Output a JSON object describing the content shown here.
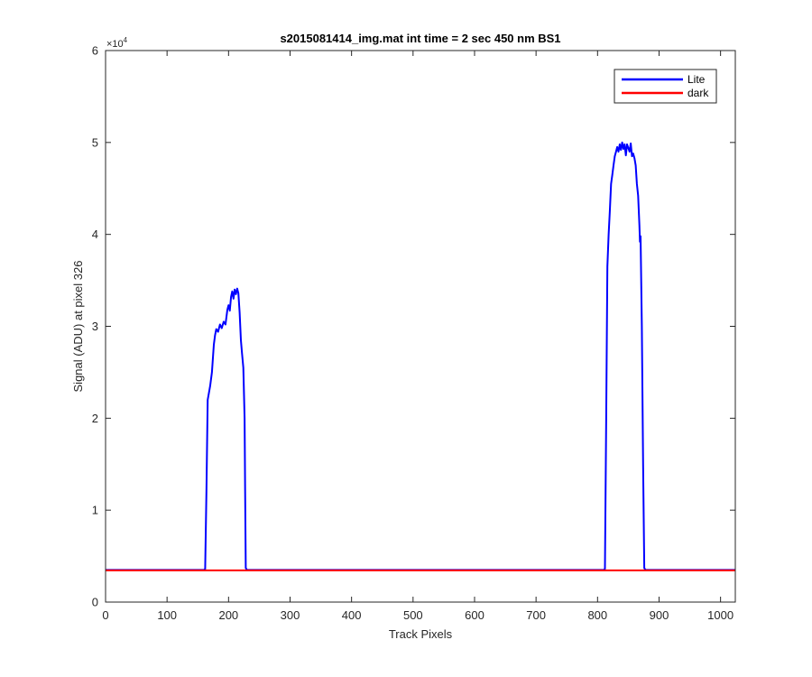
{
  "chart_data": {
    "type": "line",
    "title": "s2015081414_img.mat int time = 2 sec  450 nm BS1",
    "xlabel": "Track Pixels",
    "ylabel": "Signal (ADU) at pixel 326",
    "xlim": [
      0,
      1024
    ],
    "ylim": [
      0,
      60000
    ],
    "xticks": [
      0,
      100,
      200,
      300,
      400,
      500,
      600,
      700,
      800,
      900,
      1000
    ],
    "yticks": [
      0,
      1,
      2,
      3,
      4,
      5,
      6
    ],
    "y_multiplier_label": "×10",
    "y_multiplier_exponent": "4",
    "grid": false,
    "legend_position": "top-right",
    "series": [
      {
        "name": "Lite",
        "color": "#0000ff",
        "points": [
          [
            0,
            3500
          ],
          [
            160,
            3500
          ],
          [
            162,
            3600
          ],
          [
            164,
            12000
          ],
          [
            166,
            22000
          ],
          [
            170,
            23500
          ],
          [
            173,
            25000
          ],
          [
            176,
            28000
          ],
          [
            178,
            29000
          ],
          [
            180,
            29700
          ],
          [
            183,
            29400
          ],
          [
            186,
            30200
          ],
          [
            189,
            29800
          ],
          [
            192,
            30500
          ],
          [
            195,
            30200
          ],
          [
            198,
            31800
          ],
          [
            200,
            32300
          ],
          [
            202,
            31700
          ],
          [
            204,
            33200
          ],
          [
            206,
            33800
          ],
          [
            208,
            33000
          ],
          [
            210,
            34000
          ],
          [
            212,
            33500
          ],
          [
            214,
            34100
          ],
          [
            216,
            33600
          ],
          [
            218,
            31500
          ],
          [
            220,
            28500
          ],
          [
            222,
            27000
          ],
          [
            224,
            25500
          ],
          [
            226,
            20000
          ],
          [
            227,
            12000
          ],
          [
            228,
            3700
          ],
          [
            230,
            3500
          ],
          [
            810,
            3500
          ],
          [
            812,
            3600
          ],
          [
            814,
            20000
          ],
          [
            816,
            36500
          ],
          [
            818,
            40000
          ],
          [
            820,
            42500
          ],
          [
            822,
            45500
          ],
          [
            824,
            46500
          ],
          [
            826,
            47500
          ],
          [
            828,
            48500
          ],
          [
            830,
            49000
          ],
          [
            832,
            49500
          ],
          [
            834,
            49000
          ],
          [
            836,
            49800
          ],
          [
            838,
            49200
          ],
          [
            840,
            50000
          ],
          [
            842,
            49300
          ],
          [
            844,
            49800
          ],
          [
            846,
            48600
          ],
          [
            848,
            49800
          ],
          [
            850,
            49400
          ],
          [
            852,
            49000
          ],
          [
            854,
            49900
          ],
          [
            856,
            48500
          ],
          [
            858,
            48800
          ],
          [
            860,
            48300
          ],
          [
            862,
            47500
          ],
          [
            864,
            45500
          ],
          [
            866,
            44200
          ],
          [
            868,
            41000
          ],
          [
            869,
            39200
          ],
          [
            870,
            39800
          ],
          [
            872,
            30000
          ],
          [
            874,
            15000
          ],
          [
            876,
            3700
          ],
          [
            878,
            3500
          ],
          [
            1024,
            3500
          ]
        ]
      },
      {
        "name": "dark",
        "color": "#ff0000",
        "points": [
          [
            0,
            3450
          ],
          [
            1024,
            3450
          ]
        ]
      }
    ]
  }
}
